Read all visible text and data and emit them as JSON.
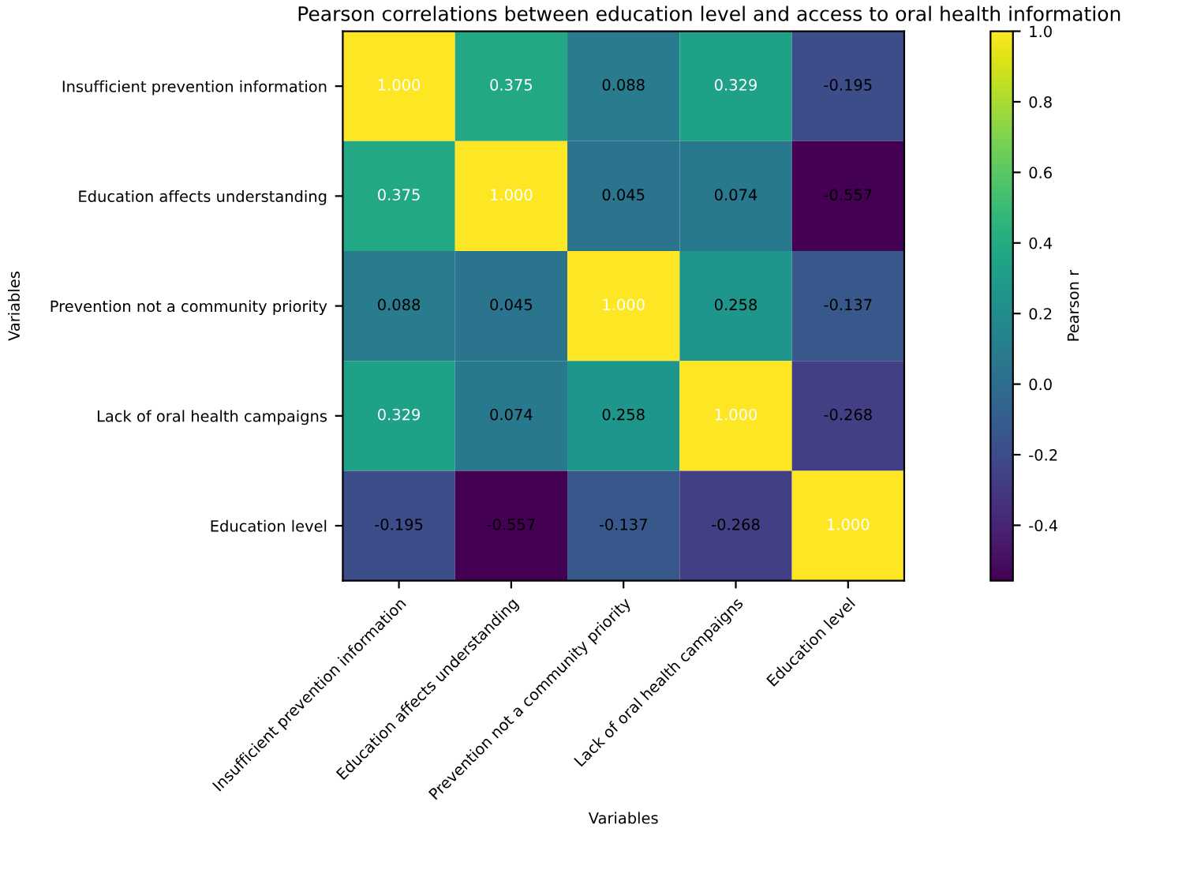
{
  "chart_data": {
    "type": "heatmap",
    "title": "Pearson correlations between education level and access to oral health information",
    "xlabel": "Variables",
    "ylabel": "Variables",
    "clabel": "Pearson r",
    "categories": [
      "Insufficient prevention information",
      "Education affects understanding",
      "Prevention not a community priority",
      "Lack of oral health campaigns",
      "Education level"
    ],
    "y_categories": [
      "Insufficient prevention information",
      "Education affects understanding",
      "Prevention not a community priority",
      "Lack of oral health campaigns",
      "Education level"
    ],
    "cells": [
      [
        1.0,
        0.375,
        0.088,
        0.329,
        -0.195
      ],
      [
        0.375,
        1.0,
        0.045,
        0.074,
        -0.557
      ],
      [
        0.088,
        0.045,
        1.0,
        0.258,
        -0.137
      ],
      [
        0.329,
        0.074,
        0.258,
        1.0,
        -0.268
      ],
      [
        -0.195,
        -0.557,
        -0.137,
        -0.268,
        1.0
      ]
    ],
    "cell_labels": [
      [
        "1.000",
        "0.375",
        "0.088",
        "0.329",
        "-0.195"
      ],
      [
        "0.375",
        "1.000",
        "0.045",
        "0.074",
        "-0.557"
      ],
      [
        "0.088",
        "0.045",
        "1.000",
        "0.258",
        "-0.137"
      ],
      [
        "0.329",
        "0.074",
        "0.258",
        "1.000",
        "-0.268"
      ],
      [
        "-0.195",
        "-0.557",
        "-0.137",
        "-0.268",
        "1.000"
      ]
    ],
    "clim": [
      -0.557,
      1.0
    ],
    "cticks": [
      -0.4,
      -0.2,
      {
        "value": 0,
        "label": "0.0"
      },
      0.2,
      0.4,
      0.6,
      0.8,
      {
        "value": 1,
        "label": "1.0"
      }
    ]
  }
}
